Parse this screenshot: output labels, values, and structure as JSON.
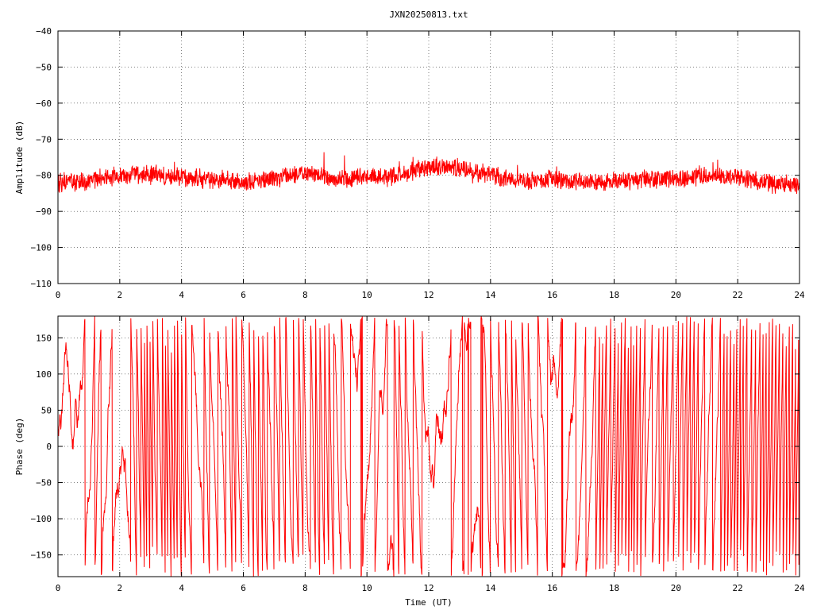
{
  "chart_data": [
    {
      "type": "line",
      "title": "JXN20250813.txt",
      "xlabel": "",
      "ylabel": "Amplitude (dB)",
      "xlim": [
        0,
        24
      ],
      "ylim": [
        -110,
        -40
      ],
      "xticks": [
        "0",
        "2",
        "4",
        "6",
        "8",
        "10",
        "12",
        "14",
        "16",
        "18",
        "20",
        "22",
        "24"
      ],
      "yticks": [
        "-40",
        "-50",
        "-60",
        "-70",
        "-80",
        "-90",
        "-100",
        "-110"
      ],
      "grid": true,
      "series": [
        {
          "color": "#ff0000",
          "x": [
            0,
            1,
            2,
            3,
            4,
            5,
            6,
            7,
            8,
            8.5,
            9,
            10,
            11,
            12,
            13,
            14,
            15,
            16,
            17,
            18,
            19,
            20,
            21,
            22,
            23,
            24
          ],
          "y": [
            -82,
            -81.5,
            -80,
            -79.5,
            -80.5,
            -81,
            -82,
            -81,
            -79.5,
            -80,
            -81,
            -80.5,
            -80,
            -77.5,
            -78,
            -80,
            -81.5,
            -81,
            -82,
            -81.5,
            -81,
            -81,
            -80,
            -80.5,
            -82,
            -82.5
          ],
          "noise_db": 2.5
        }
      ]
    },
    {
      "type": "line",
      "title": "",
      "xlabel": "Time (UT)",
      "ylabel": "Phase (deg)",
      "xlim": [
        0,
        24
      ],
      "ylim": [
        -180,
        180
      ],
      "xticks": [
        "0",
        "2",
        "4",
        "6",
        "8",
        "10",
        "12",
        "14",
        "16",
        "18",
        "20",
        "22",
        "24"
      ],
      "yticks": [
        "150",
        "100",
        "50",
        "0",
        "-50",
        "-100",
        "-150"
      ],
      "grid": true,
      "series": [
        {
          "color": "#ff0000",
          "description_range_deg": [
            -180,
            180
          ],
          "wrapped": true
        }
      ]
    }
  ]
}
